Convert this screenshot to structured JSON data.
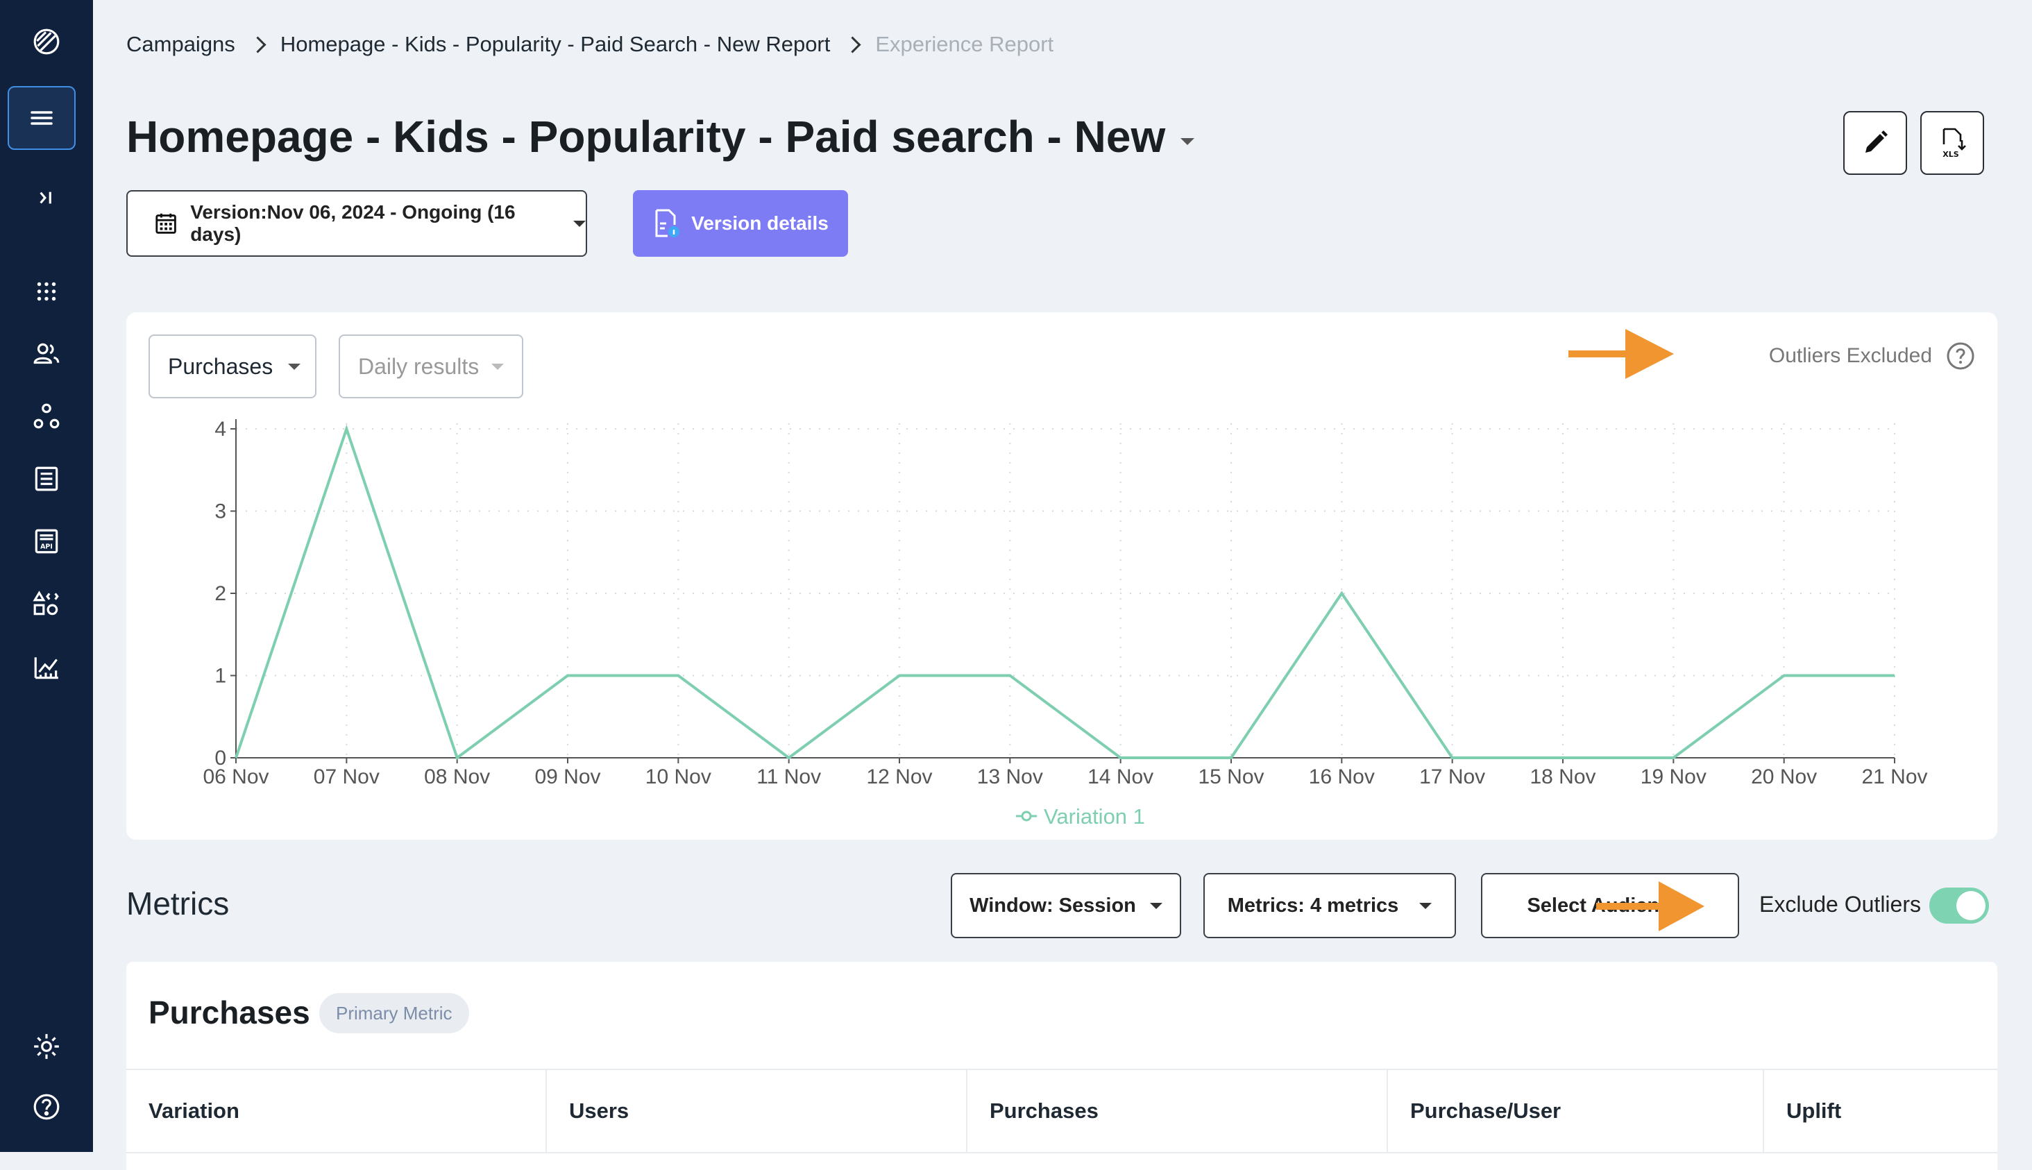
{
  "sidebar": {
    "icons": [
      "logo-icon",
      "menu-icon",
      "expand-icon",
      "apps-grid-icon",
      "audiences-icon",
      "journeys-icon",
      "list-icon",
      "api-icon",
      "widgets-icon",
      "analytics-icon",
      "settings-icon",
      "help-icon"
    ]
  },
  "breadcrumb": {
    "items": [
      "Campaigns",
      "Homepage - Kids - Popularity - Paid Search - New Report",
      "Experience Report"
    ]
  },
  "page": {
    "title": "Homepage - Kids - Popularity - Paid search - New"
  },
  "toolbar": {
    "version_label": "Version:Nov 06, 2024 - Ongoing (16 days)",
    "version_details_label": "Version details",
    "edit_icon": "pencil-icon",
    "export_icon": "xls-download-icon",
    "export_label": "XLS"
  },
  "chart_controls": {
    "metric_select": "Purchases",
    "period_select": "Daily results",
    "outliers_label": "Outliers Excluded"
  },
  "chart_data": {
    "type": "line",
    "x": [
      "06 Nov",
      "07 Nov",
      "08 Nov",
      "09 Nov",
      "10 Nov",
      "11 Nov",
      "12 Nov",
      "13 Nov",
      "14 Nov",
      "15 Nov",
      "16 Nov",
      "17 Nov",
      "18 Nov",
      "19 Nov",
      "20 Nov",
      "21 Nov"
    ],
    "series": [
      {
        "name": "Variation 1",
        "values": [
          0,
          4,
          0,
          1,
          1,
          0,
          1,
          1,
          0,
          0,
          2,
          0,
          0,
          0,
          1,
          1
        ],
        "color": "#7ecfb0"
      }
    ],
    "yticks": [
      0,
      1,
      2,
      3,
      4
    ],
    "ylim": [
      0,
      4
    ],
    "grid": true,
    "legend": "bottom-center"
  },
  "metrics_section": {
    "heading": "Metrics",
    "window_label": "Window: Session",
    "metrics_label": "Metrics: 4 metrics",
    "audiences_label": "Select Audiences",
    "exclude_outliers_label": "Exclude Outliers",
    "exclude_outliers_on": true
  },
  "table": {
    "title": "Purchases",
    "badge": "Primary Metric",
    "columns": [
      "Variation",
      "Users",
      "Purchases",
      "Purchase/User",
      "Uplift"
    ]
  },
  "colors": {
    "sidebar": "#10213d",
    "accent": "#7e7cf5",
    "series": "#7ecfb0",
    "annotation_arrow": "#f0952f",
    "toggle_on": "#7ed3b2"
  }
}
